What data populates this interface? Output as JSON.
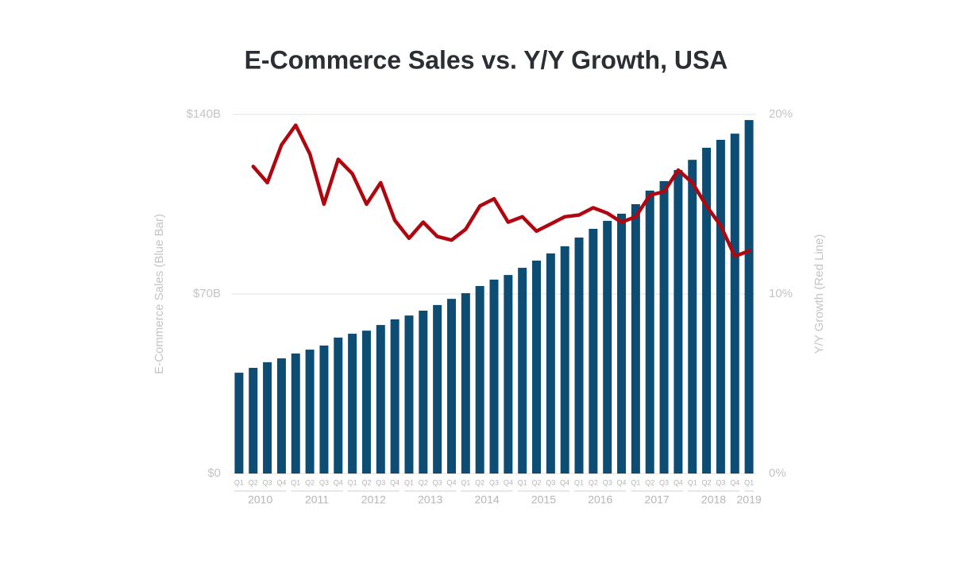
{
  "chart_data": {
    "type": "bar_line",
    "title": "E-Commerce Sales vs. Y/Y Growth, USA",
    "ylabel": "E-Commerce Sales (Blue Bar)",
    "y2label": "Y/Y Growth (Red Line)",
    "categories": [
      "Q1",
      "Q2",
      "Q3",
      "Q4",
      "Q1",
      "Q2",
      "Q3",
      "Q4",
      "Q1",
      "Q2",
      "Q3",
      "Q4",
      "Q1",
      "Q2",
      "Q3",
      "Q4",
      "Q1",
      "Q2",
      "Q3",
      "Q4",
      "Q1",
      "Q2",
      "Q3",
      "Q4",
      "Q1",
      "Q2",
      "Q3",
      "Q4",
      "Q1",
      "Q2",
      "Q3",
      "Q4",
      "Q1",
      "Q2",
      "Q3",
      "Q4",
      "Q1"
    ],
    "x_groups": [
      {
        "label": "2010",
        "count": 4
      },
      {
        "label": "2011",
        "count": 4
      },
      {
        "label": "2012",
        "count": 4
      },
      {
        "label": "2013",
        "count": 4
      },
      {
        "label": "2014",
        "count": 4
      },
      {
        "label": "2015",
        "count": 4
      },
      {
        "label": "2016",
        "count": 4
      },
      {
        "label": "2017",
        "count": 4
      },
      {
        "label": "2018",
        "count": 4
      },
      {
        "label": "2019",
        "count": 1
      }
    ],
    "series": [
      {
        "name": "E-Commerce Sales",
        "color": "#0d4d73",
        "values": [
          39.3,
          41.2,
          43.4,
          44.9,
          46.8,
          48.3,
          49.9,
          53.0,
          54.5,
          55.7,
          57.9,
          60.1,
          61.6,
          63.5,
          65.7,
          68.1,
          70.3,
          73.1,
          75.6,
          77.4,
          80.2,
          83.0,
          85.8,
          88.6,
          92.0,
          95.4,
          98.5,
          101.3,
          105.0,
          110.3,
          114.0,
          118.3,
          122.3,
          127.0,
          130.1,
          132.5,
          137.8
        ]
      },
      {
        "name": "Y/Y Growth",
        "color": "#b0060f",
        "axis": "y2",
        "values": [
          null,
          17.1,
          16.2,
          18.3,
          19.4,
          17.8,
          15.0,
          17.5,
          16.7,
          15.0,
          16.2,
          14.1,
          13.1,
          14.0,
          13.2,
          13.0,
          13.6,
          14.9,
          15.3,
          14.0,
          14.3,
          13.5,
          13.9,
          14.3,
          14.4,
          14.8,
          14.5,
          14.0,
          14.3,
          15.5,
          15.7,
          16.9,
          16.2,
          14.9,
          13.8,
          12.1,
          12.4
        ]
      }
    ],
    "ylim": [
      0,
      140
    ],
    "yticks": [
      {
        "value": 0,
        "label": "$0"
      },
      {
        "value": 70,
        "label": "$70B"
      },
      {
        "value": 140,
        "label": "$140B"
      }
    ],
    "y2lim": [
      0,
      20
    ],
    "y2ticks": [
      {
        "value": 0,
        "label": "0%"
      },
      {
        "value": 10,
        "label": "10%"
      },
      {
        "value": 20,
        "label": "20%"
      }
    ],
    "grid": true
  }
}
